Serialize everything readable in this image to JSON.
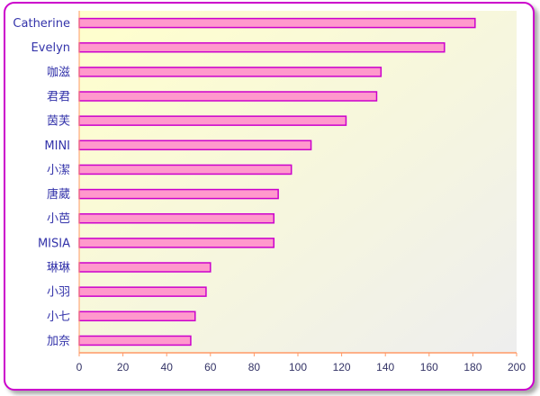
{
  "chart_data": {
    "type": "bar",
    "orientation": "horizontal",
    "categories": [
      "Catherine",
      "Evelyn",
      "咖滋",
      "君君",
      "茵芙",
      "MINI",
      "小潔",
      "唐葳",
      "小芭",
      "MISIA",
      "琳琳",
      "小羽",
      "小七",
      "加奈"
    ],
    "values": [
      181,
      167,
      138,
      136,
      122,
      106,
      97,
      91,
      89,
      89,
      60,
      58,
      53,
      51
    ],
    "xlim": [
      0,
      200
    ],
    "xticks": [
      "0",
      "20",
      "40",
      "60",
      "80",
      "100",
      "120",
      "140",
      "160",
      "180",
      "200"
    ],
    "title": "",
    "xlabel": "",
    "ylabel": "",
    "grid": false,
    "legend": "none",
    "colors": {
      "bar_fill": "#ff99cc",
      "bar_stroke": "#cc00cc",
      "axis": "#ff9966",
      "plot_bg_start": "#ffffcc",
      "plot_bg_end": "#eeeeee",
      "label": "#3333aa",
      "frame": "#cc00cc"
    }
  }
}
